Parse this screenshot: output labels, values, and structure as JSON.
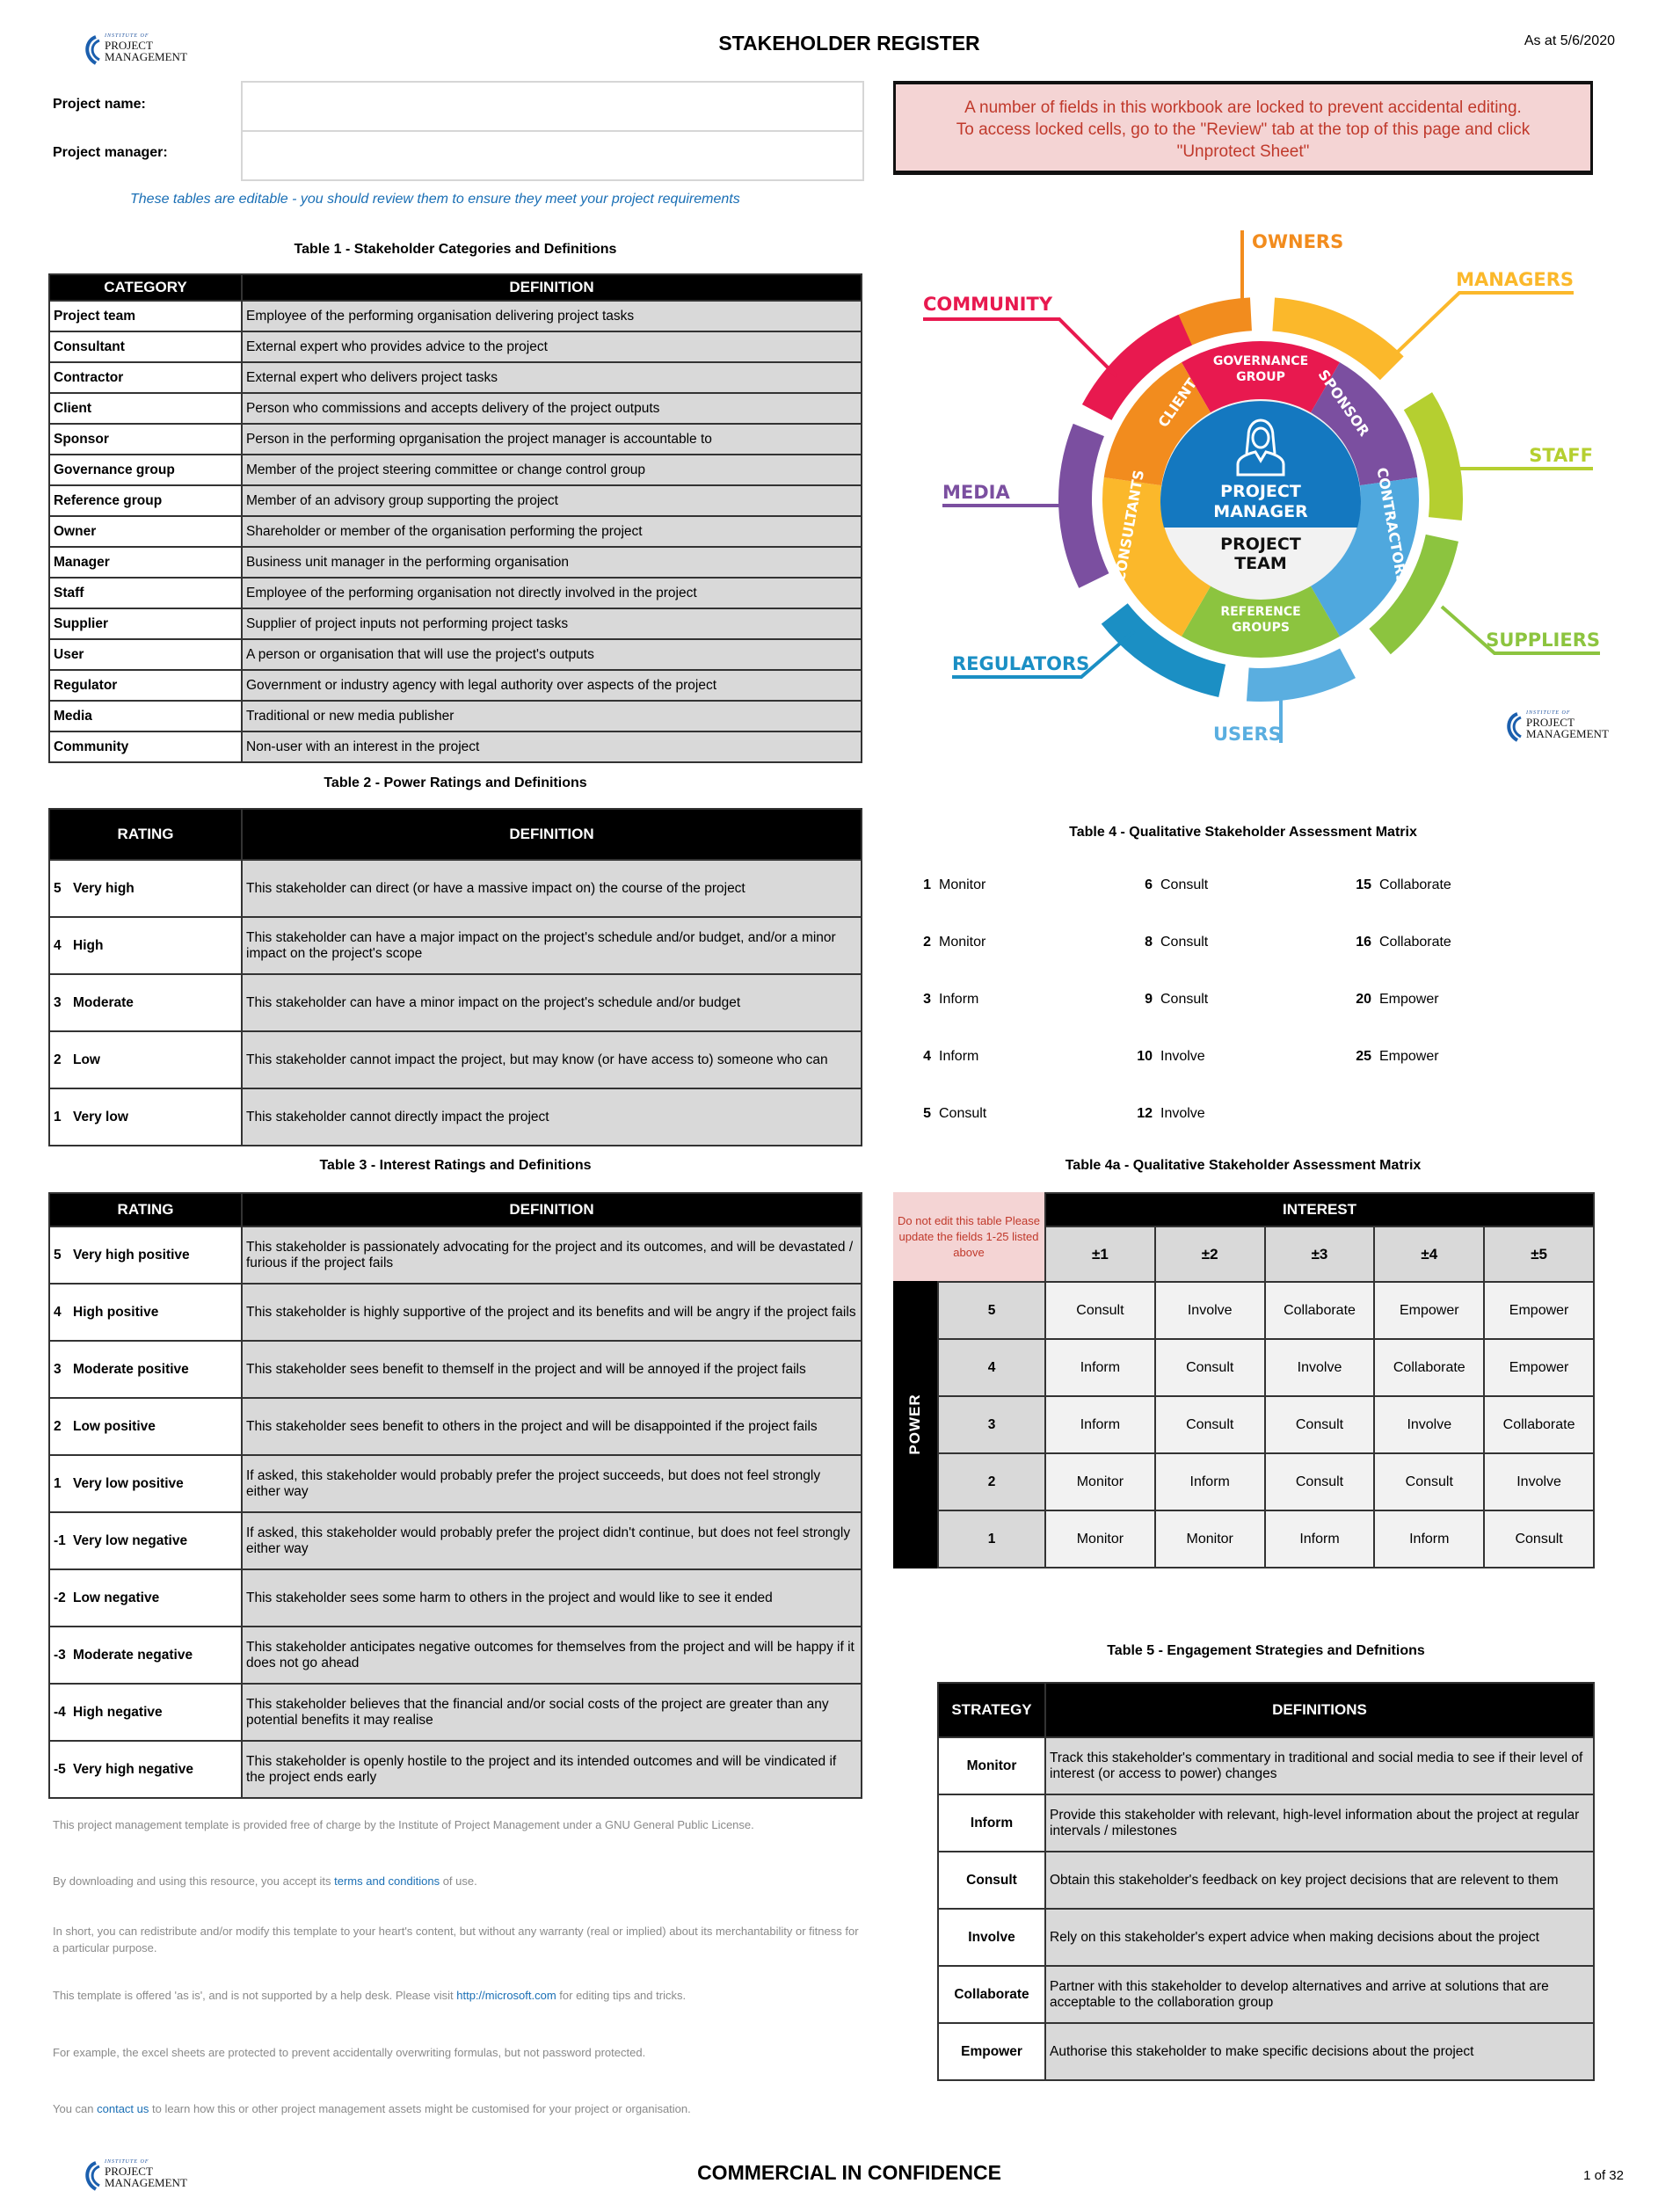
{
  "header": {
    "title": "STAKEHOLDER REGISTER",
    "as_at": "As at 5/6/2020",
    "logo_text": [
      "INSTITUTE OF",
      "PROJECT",
      "MANAGEMENT"
    ]
  },
  "project": {
    "name_label": "Project name:",
    "name_value": "",
    "manager_label": "Project manager:",
    "manager_value": ""
  },
  "warning": {
    "line1": "A number of fields in this workbook are locked to prevent accidental editing.",
    "line2": "To access locked cells, go to the \"Review\" tab at the top of this page and click",
    "line3": "\"Unprotect Sheet\""
  },
  "editable_note": "These tables are editable - you should review them to ensure they meet your project requirements",
  "table1": {
    "title": "Table 1 - Stakeholder Categories and Definitions",
    "headers": [
      "CATEGORY",
      "DEFINITION"
    ],
    "rows": [
      [
        "Project team",
        "Employee of the performing organisation delivering project tasks"
      ],
      [
        "Consultant",
        "External expert who provides advice to the project"
      ],
      [
        "Contractor",
        "External expert who delivers project tasks"
      ],
      [
        "Client",
        "Person who commissions and accepts delivery of the project outputs"
      ],
      [
        "Sponsor",
        "Person in the performing oprganisation the project manager is accountable to"
      ],
      [
        "Governance group",
        "Member of the project steering committee or change control group"
      ],
      [
        "Reference group",
        "Member of an advisory group supporting the project"
      ],
      [
        "Owner",
        "Shareholder or member of the organisation performing the project"
      ],
      [
        "Manager",
        "Business unit manager in the performing organisation"
      ],
      [
        "Staff",
        "Employee of the performing organisation not directly involved in the project"
      ],
      [
        "Supplier",
        "Supplier of project inputs not performing project tasks"
      ],
      [
        "User",
        "A person or organisation that will use the project's outputs"
      ],
      [
        "Regulator",
        "Government or industry agency with legal authority over aspects of the project"
      ],
      [
        "Media",
        "Traditional or new media publisher"
      ],
      [
        "Community",
        "Non-user with an interest in the project"
      ]
    ]
  },
  "table2": {
    "title": "Table 2 - Power Ratings and Definitions",
    "headers": [
      "RATING",
      "DEFINITION"
    ],
    "rows": [
      [
        "5",
        "Very high",
        "This stakeholder can direct (or have a massive impact on) the course of the project"
      ],
      [
        "4",
        "High",
        "This stakeholder can have a major impact on the project's schedule and/or budget, and/or a minor impact on the project's scope"
      ],
      [
        "3",
        "Moderate",
        "This stakeholder can have a minor impact on the project's schedule and/or budget"
      ],
      [
        "2",
        "Low",
        "This stakeholder cannot impact the project, but may know (or have access to) someone who can"
      ],
      [
        "1",
        "Very low",
        "This stakeholder cannot directly impact the project"
      ]
    ]
  },
  "table3": {
    "title": "Table 3 - Interest Ratings and Definitions",
    "headers": [
      "RATING",
      "DEFINITION"
    ],
    "rows": [
      [
        "5",
        "Very high positive",
        "This stakeholder is passionately advocating for the project and its outcomes, and will be devastated / furious if the project fails"
      ],
      [
        "4",
        "High positive",
        "This stakeholder is highly supportive of the project and its benefits and will be angry if the project fails"
      ],
      [
        "3",
        "Moderate positive",
        "This stakeholder sees benefit to themself in the project and will be annoyed if the project fails"
      ],
      [
        "2",
        "Low positive",
        "This stakeholder sees benefit to others in the project and will be disappointed if the project fails"
      ],
      [
        "1",
        "Very low positive",
        "If asked, this stakeholder would probably prefer the project succeeds, but does not feel strongly either way"
      ],
      [
        "-1",
        "Very low negative",
        "If asked, this stakeholder would probably prefer the project didn't continue, but does not feel strongly either way"
      ],
      [
        "-2",
        "Low negative",
        "This stakeholder sees some harm to others in the project and would like to see it ended"
      ],
      [
        "-3",
        "Moderate negative",
        "This stakeholder anticipates negative outcomes for themselves from the project and will be happy if it does not go ahead"
      ],
      [
        "-4",
        "High negative",
        "This stakeholder believes that the financial and/or social costs of the project are greater than any potential benefits it may realise"
      ],
      [
        "-5",
        "Very high negative",
        "This stakeholder is openly hostile to the project and its intended outcomes and will be vindicated if the project ends early"
      ]
    ]
  },
  "table4": {
    "title": "Table 4 - Qualitative Stakeholder Assessment Matrix",
    "columns": [
      [
        [
          "1",
          "Monitor"
        ],
        [
          "2",
          "Monitor"
        ],
        [
          "3",
          "Inform"
        ],
        [
          "4",
          "Inform"
        ],
        [
          "5",
          "Consult"
        ]
      ],
      [
        [
          "6",
          "Consult"
        ],
        [
          "8",
          "Consult"
        ],
        [
          "9",
          "Consult"
        ],
        [
          "10",
          "Involve"
        ],
        [
          "12",
          "Involve"
        ]
      ],
      [
        [
          "15",
          "Collaborate"
        ],
        [
          "16",
          "Collaborate"
        ],
        [
          "20",
          "Empower"
        ],
        [
          "25",
          "Empower"
        ]
      ]
    ]
  },
  "table4a": {
    "title": "Table 4a - Qualitative Stakeholder Assessment Matrix",
    "note": "Do not edit this table Please update the fields 1-25 listed above",
    "interest_label": "INTEREST",
    "power_label": "POWER",
    "interest_levels": [
      "±1",
      "±2",
      "±3",
      "±4",
      "±5"
    ],
    "rows": [
      {
        "power": "5",
        "cells": [
          "Consult",
          "Involve",
          "Collaborate",
          "Empower",
          "Empower"
        ]
      },
      {
        "power": "4",
        "cells": [
          "Inform",
          "Consult",
          "Involve",
          "Collaborate",
          "Empower"
        ]
      },
      {
        "power": "3",
        "cells": [
          "Inform",
          "Consult",
          "Consult",
          "Involve",
          "Collaborate"
        ]
      },
      {
        "power": "2",
        "cells": [
          "Monitor",
          "Inform",
          "Consult",
          "Consult",
          "Involve"
        ]
      },
      {
        "power": "1",
        "cells": [
          "Monitor",
          "Monitor",
          "Inform",
          "Inform",
          "Consult"
        ]
      }
    ]
  },
  "table5": {
    "title": "Table 5 - Engagement Strategies and Defnitions",
    "headers": [
      "STRATEGY",
      "DEFINITIONS"
    ],
    "rows": [
      [
        "Monitor",
        "Track this stakeholder's commentary in traditional and social media to see if their level of interest (or access to power) changes"
      ],
      [
        "Inform",
        "Provide this stakeholder with relevant, high-level information about the project at regular intervals / milestones"
      ],
      [
        "Consult",
        "Obtain this stakeholder's feedback on key project decisions that are relevent to them"
      ],
      [
        "Involve",
        "Rely on this stakeholder's expert advice when making decisions about the project"
      ],
      [
        "Collaborate",
        "Partner with this stakeholder to develop alternatives and arrive at solutions that are acceptable to the collaboration group"
      ],
      [
        "Empower",
        "Authorise this stakeholder to make specific decisions about the project"
      ]
    ]
  },
  "diagram": {
    "center": [
      "PROJECT",
      "MANAGER"
    ],
    "team": [
      "PROJECT",
      "TEAM"
    ],
    "inner_segments": [
      {
        "label": [
          "GOVERNANCE",
          "GROUP"
        ],
        "color": "#e8194f"
      },
      {
        "label": [
          "SPONSOR"
        ],
        "color": "#7b4fa0"
      },
      {
        "label": [
          "CONTRACTORS"
        ],
        "color": "#4fa8de"
      },
      {
        "label": [
          "REFERENCE",
          "GROUPS"
        ],
        "color": "#8cc43f"
      },
      {
        "label": [
          "CONSULTANTS"
        ],
        "color": "#fbb82b"
      },
      {
        "label": [
          "CLIENT"
        ],
        "color": "#f28c1e"
      }
    ],
    "outer_groups": [
      {
        "label": "OWNERS",
        "color": "#f28c1e"
      },
      {
        "label": "MANAGERS",
        "color": "#fbb82b"
      },
      {
        "label": "STAFF",
        "color": "#b5cf30"
      },
      {
        "label": "SUPPLIERS",
        "color": "#8cc43f"
      },
      {
        "label": "USERS",
        "color": "#5aaee0"
      },
      {
        "label": "REGULATORS",
        "color": "#1b8fc4"
      },
      {
        "label": "MEDIA",
        "color": "#7b4fa0"
      },
      {
        "label": "COMMUNITY",
        "color": "#e8194f"
      }
    ],
    "center_color": "#1478c0"
  },
  "footer_notes": [
    {
      "before": "This project management template is provided free of charge by the Institute of Project Management under a GNU General Public License.",
      "link": "",
      "after": ""
    },
    {
      "before": "By downloading and using this resource, you accept its ",
      "link": "terms and conditions",
      "after": " of use."
    },
    {
      "before": "In short, you can redistribute and/or modify this template to your heart's content, but without any warranty (real or implied) about its merchantability or fitness for a particular purpose.",
      "link": "",
      "after": ""
    },
    {
      "before": "This template is offered 'as is', and is not supported by a help desk. Please visit ",
      "link": "http://microsoft.com",
      "after": " for editing tips and tricks."
    },
    {
      "before": "For example, the excel sheets are protected to prevent accidentally overwriting formulas, but not password protected.",
      "link": "",
      "after": ""
    },
    {
      "before": "You can ",
      "link": "contact us",
      "after": " to learn how this or other project management assets might be customised for your project or organisation."
    }
  ],
  "footer": {
    "confidential": "COMMERCIAL IN CONFIDENCE",
    "page": "1 of 32"
  }
}
